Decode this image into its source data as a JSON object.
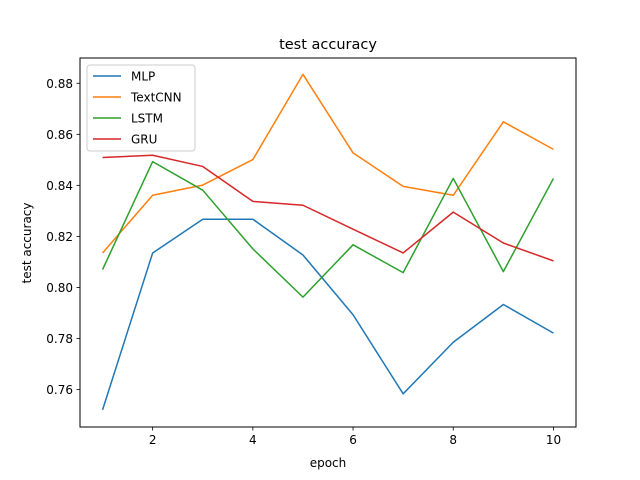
{
  "chart_data": {
    "type": "line",
    "title": "test accuracy",
    "xlabel": "epoch",
    "ylabel": "test accuracy",
    "x": [
      1,
      2,
      3,
      4,
      5,
      6,
      7,
      8,
      9,
      10
    ],
    "xlim": [
      0.55,
      10.45
    ],
    "ylim": [
      0.7453,
      0.8899
    ],
    "xticks": [
      2,
      4,
      6,
      8,
      10
    ],
    "xtick_labels": [
      "2",
      "4",
      "6",
      "8",
      "10"
    ],
    "yticks": [
      0.76,
      0.78,
      0.8,
      0.82,
      0.84,
      0.86,
      0.88
    ],
    "ytick_labels": [
      "0.76",
      "0.78",
      "0.80",
      "0.82",
      "0.84",
      "0.86",
      "0.88"
    ],
    "grid": false,
    "legend_position": "top-left",
    "series": [
      {
        "name": "MLP",
        "color": "#1f77b4",
        "values": [
          0.752,
          0.8135,
          0.8267,
          0.8267,
          0.8127,
          0.7893,
          0.7583,
          0.7785,
          0.7933,
          0.7821
        ]
      },
      {
        "name": "TextCNN",
        "color": "#ff7f0e",
        "values": [
          0.8135,
          0.8361,
          0.8401,
          0.8501,
          0.8835,
          0.8527,
          0.8396,
          0.8361,
          0.8649,
          0.8541
        ]
      },
      {
        "name": "LSTM",
        "color": "#2ca02c",
        "values": [
          0.807,
          0.8493,
          0.8381,
          0.8151,
          0.7962,
          0.8167,
          0.8058,
          0.8427,
          0.8062,
          0.8427
        ]
      },
      {
        "name": "GRU",
        "color": "#d62728",
        "values": [
          0.8509,
          0.8518,
          0.8474,
          0.8337,
          0.8322,
          0.8228,
          0.8135,
          0.8295,
          0.8174,
          0.8104
        ]
      }
    ]
  }
}
